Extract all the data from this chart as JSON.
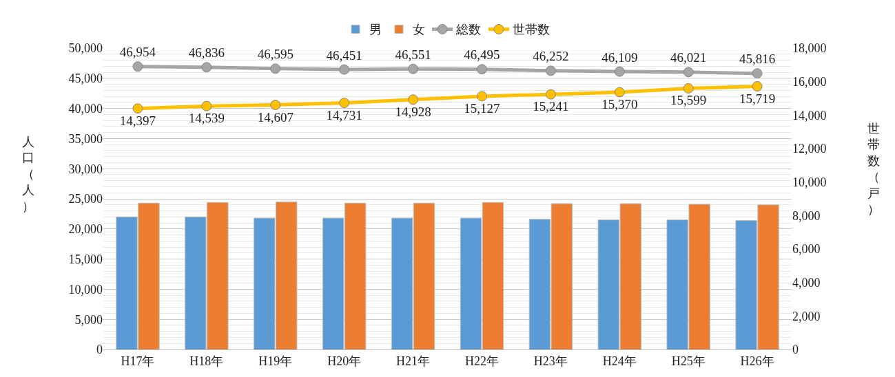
{
  "chart_data": {
    "type": "bar",
    "ylabel": "人口（人）",
    "y2label": "世帯数（戸）",
    "categories": [
      "H17年",
      "H18年",
      "H19年",
      "H20年",
      "H21年",
      "H22年",
      "H23年",
      "H24年",
      "H25年",
      "H26年"
    ],
    "series": [
      {
        "name": "男",
        "color": "#5b9bd5",
        "values": [
          22000,
          22000,
          21800,
          21800,
          21800,
          21800,
          21600,
          21500,
          21500,
          21400
        ]
      },
      {
        "name": "女",
        "color": "#ed7d31",
        "values": [
          24300,
          24400,
          24500,
          24300,
          24300,
          24400,
          24200,
          24200,
          24100,
          24000
        ]
      },
      {
        "name": "総数",
        "type": "line",
        "color": "#a5a5a5",
        "marker": "circle",
        "values": [
          46954,
          46836,
          46595,
          46451,
          46551,
          46495,
          46252,
          46109,
          46021,
          45816
        ],
        "value_labels": [
          "46,954",
          "46,836",
          "46,595",
          "46,451",
          "46,551",
          "46,495",
          "46,252",
          "46,109",
          "46,021",
          "45,816"
        ]
      },
      {
        "name": "世帯数",
        "type": "line",
        "axis": "y2",
        "color": "#ffc000",
        "marker": "circle",
        "values": [
          14397,
          14539,
          14607,
          14731,
          14928,
          15127,
          15241,
          15370,
          15599,
          15719
        ],
        "value_labels": [
          "14,397",
          "14,539",
          "14,607",
          "14,731",
          "14,928",
          "15,127",
          "15,241",
          "15,370",
          "15,599",
          "15,719"
        ]
      }
    ],
    "ylim": [
      0,
      50000
    ],
    "yticks": [
      {
        "value": 0,
        "label": "0"
      },
      {
        "value": 5000,
        "label": "5,000"
      },
      {
        "value": 10000,
        "label": "10,000"
      },
      {
        "value": 15000,
        "label": "15,000"
      },
      {
        "value": 20000,
        "label": "20,000"
      },
      {
        "value": 25000,
        "label": "25,000"
      },
      {
        "value": 30000,
        "label": "30,000"
      },
      {
        "value": 35000,
        "label": "35,000"
      },
      {
        "value": 40000,
        "label": "40,000"
      },
      {
        "value": 45000,
        "label": "45,000"
      },
      {
        "value": 50000,
        "label": "50,000"
      }
    ],
    "y2lim": [
      0,
      18000
    ],
    "y2ticks": [
      {
        "value": 0,
        "label": "0"
      },
      {
        "value": 2000,
        "label": "2,000"
      },
      {
        "value": 4000,
        "label": "4,000"
      },
      {
        "value": 6000,
        "label": "6,000"
      },
      {
        "value": 8000,
        "label": "8,000"
      },
      {
        "value": 10000,
        "label": "10,000"
      },
      {
        "value": 12000,
        "label": "12,000"
      },
      {
        "value": 14000,
        "label": "14,000"
      },
      {
        "value": 16000,
        "label": "16,000"
      },
      {
        "value": 18000,
        "label": "18,000"
      }
    ],
    "grid": "y",
    "legend": "top"
  }
}
